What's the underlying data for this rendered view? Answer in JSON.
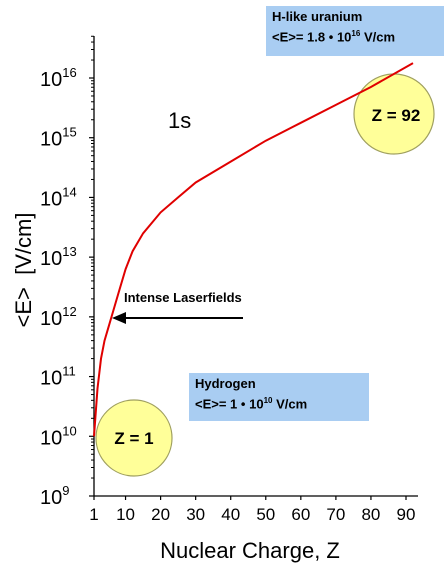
{
  "chart_data": {
    "type": "line",
    "xlabel": "Nuclear Charge, Z",
    "ylabel": "<E>  [V/cm]",
    "x_ticks": [
      "1",
      "10",
      "20",
      "30",
      "40",
      "50",
      "60",
      "70",
      "80",
      "90"
    ],
    "y_ticks": [
      "10^9",
      "10^10",
      "10^11",
      "10^12",
      "10^13",
      "10^14",
      "10^15",
      "10^16"
    ],
    "xlim": [
      1,
      95
    ],
    "ylim_log10": [
      9,
      16.7
    ],
    "y_scale": "log",
    "grid": false,
    "series": [
      {
        "name": "1s",
        "color": "#e00000",
        "x": [
          1,
          2,
          3,
          4,
          5,
          6,
          8,
          10,
          12,
          15,
          20,
          25,
          30,
          40,
          50,
          60,
          70,
          80,
          92
        ],
        "y_log10": [
          10.0,
          10.8,
          11.3,
          11.6,
          11.8,
          12.0,
          12.4,
          12.8,
          13.1,
          13.4,
          13.75,
          14.0,
          14.25,
          14.6,
          14.95,
          15.25,
          15.55,
          15.85,
          16.25
        ]
      }
    ],
    "annotations": {
      "series_label": "1s",
      "arrow_label": "Intense Laserfields",
      "arrow_target": {
        "x": 4,
        "y_log10": 12.0
      },
      "circle_z1": "Z = 1",
      "circle_z92": "Z = 92",
      "uranium_line1": "H-like uranium",
      "uranium_prefix": "<E>= 1.8",
      "uranium_exp": "16",
      "uranium_unit": "V/cm",
      "hydrogen_line1": "Hydrogen",
      "hydrogen_prefix": "<E>= 1",
      "hydrogen_exp": "10",
      "hydrogen_unit": "V/cm",
      "multiplication_dot": "•",
      "power_base": "10"
    },
    "colors": {
      "curve": "#e00000",
      "circle_fill": "#ffff99",
      "circle_stroke": "#a0a060",
      "box_fill": "#a9cdf2"
    }
  }
}
